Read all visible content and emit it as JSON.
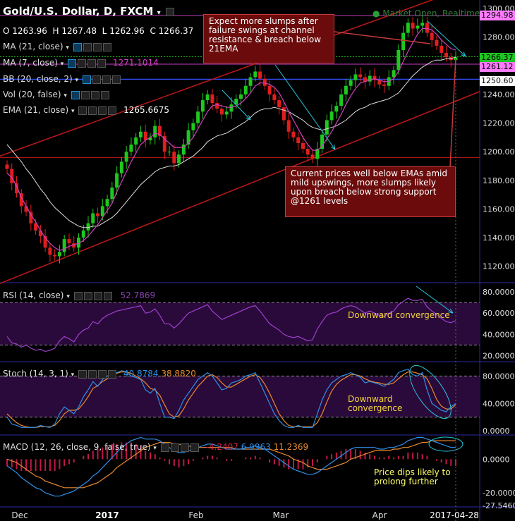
{
  "header": {
    "title": "Gold/U.S. Dollar, D, FXCM",
    "ohlc": {
      "o_label": "O",
      "o": "1263.96",
      "h_label": "H",
      "h": "1267.48",
      "l_label": "L",
      "l": "1262.96",
      "c_label": "C",
      "c": "1266.37"
    },
    "market_status": "Market Open, Realtime"
  },
  "indicators": [
    {
      "label": "MA (21, close)",
      "value": ""
    },
    {
      "label": "MA (7, close)",
      "value": "1271.1014"
    },
    {
      "label": "BB (20, close, 2)",
      "value": ""
    },
    {
      "label": "Vol (20, false)",
      "value": ""
    },
    {
      "label": "EMA (21, close)",
      "value": "1265.6675"
    }
  ],
  "annotations": {
    "top": "Expect more slumps after failure swings at channel resistance & breach below 21EMA",
    "bottom": "Current prices well below EMAs amid mild upswings, more slumps likely upon breach below strong support @1261 levels",
    "rsi_note": "Downward convergence",
    "stoch_note": "Downward convergence",
    "macd_note": "Price dips likely to prolong further"
  },
  "rsi": {
    "label": "RSI (14, close)",
    "value": "52.7869"
  },
  "stoch": {
    "label": "Stoch (14, 3, 1)",
    "k": "40.8784",
    "d": "38.8820"
  },
  "macd": {
    "label": "MACD (12, 26, close, 9, false, true)",
    "hist": "-4.2407",
    "macd": "6.9963",
    "signal": "11.2369"
  },
  "price_labels": {
    "high": "1294.98",
    "current": "1266.37",
    "ma": "1261.12",
    "support": "1250.60"
  },
  "colors": {
    "up": "#1ec81e",
    "down": "#e01e1e",
    "ma7": "#d040c0",
    "ema21": "#dddddd",
    "macd": "#2f8fe8",
    "signal": "#e8892f",
    "rsi": "#a040d0",
    "stoch_k": "#2f8fe8",
    "stoch_d": "#e8892f"
  },
  "chart_data": {
    "type": "candlestick",
    "x_labels": [
      "Dec",
      "2017",
      "Feb",
      "Mar",
      "Apr",
      "2017-04-28"
    ],
    "price_axis": {
      "ticks": [
        "1300.00",
        "1280.00",
        "1260.00",
        "1240.00",
        "1220.00",
        "1200.00",
        "1180.00",
        "1160.00",
        "1140.00",
        "1120.00"
      ],
      "ylim": [
        1110,
        1302
      ]
    },
    "rsi_axis": {
      "ticks": [
        "80.0000",
        "60.0000",
        "40.0000",
        "20.0000"
      ],
      "ylim": [
        15,
        88
      ],
      "bands": [
        70,
        30
      ]
    },
    "stoch_axis": {
      "ticks": [
        "80.0000",
        "40.0000",
        "0.0000"
      ],
      "ylim": [
        -5,
        100
      ],
      "bands": [
        80,
        20
      ]
    },
    "macd_axis": {
      "ticks": [
        "0.0000",
        "-20.0000",
        "-27.5460"
      ],
      "ylim": [
        -28,
        14
      ]
    },
    "close": [
      1188,
      1178,
      1171,
      1162,
      1158,
      1150,
      1145,
      1141,
      1133,
      1128,
      1127,
      1130,
      1139,
      1136,
      1133,
      1140,
      1145,
      1150,
      1157,
      1155,
      1162,
      1167,
      1175,
      1185,
      1193,
      1200,
      1205,
      1210,
      1214,
      1208,
      1210,
      1218,
      1211,
      1200,
      1200,
      1192,
      1198,
      1205,
      1215,
      1220,
      1228,
      1236,
      1240,
      1234,
      1230,
      1226,
      1228,
      1233,
      1237,
      1240,
      1246,
      1252,
      1256,
      1251,
      1246,
      1240,
      1236,
      1231,
      1222,
      1214,
      1210,
      1206,
      1202,
      1198,
      1195,
      1202,
      1212,
      1222,
      1228,
      1232,
      1240,
      1246,
      1250,
      1254,
      1252,
      1249,
      1253,
      1250,
      1247,
      1246,
      1252,
      1257,
      1271,
      1283,
      1290,
      1286,
      1288,
      1290,
      1283,
      1278,
      1274,
      1269,
      1266,
      1264,
      1266
    ],
    "ma7": [
      1185,
      1182,
      1176,
      1168,
      1162,
      1156,
      1151,
      1145,
      1140,
      1136,
      1133,
      1131,
      1132,
      1134,
      1135,
      1136,
      1138,
      1141,
      1145,
      1149,
      1154,
      1159,
      1164,
      1172,
      1179,
      1186,
      1193,
      1199,
      1205,
      1208,
      1210,
      1213,
      1212,
      1209,
      1206,
      1203,
      1203,
      1203,
      1206,
      1210,
      1216,
      1222,
      1228,
      1232,
      1233,
      1232,
      1231,
      1231,
      1232,
      1234,
      1237,
      1241,
      1246,
      1248,
      1248,
      1247,
      1245,
      1241,
      1235,
      1228,
      1222,
      1216,
      1210,
      1205,
      1201,
      1201,
      1204,
      1209,
      1214,
      1220,
      1226,
      1233,
      1239,
      1244,
      1248,
      1249,
      1250,
      1251,
      1250,
      1249,
      1249,
      1251,
      1256,
      1263,
      1270,
      1276,
      1282,
      1286,
      1286,
      1285,
      1282,
      1278,
      1275,
      1272,
      1271
    ],
    "ema21": [
      1205,
      1201,
      1197,
      1193,
      1188,
      1184,
      1179,
      1174,
      1170,
      1165,
      1161,
      1158,
      1155,
      1152,
      1150,
      1148,
      1147,
      1147,
      1148,
      1148,
      1150,
      1152,
      1154,
      1157,
      1161,
      1165,
      1169,
      1173,
      1177,
      1180,
      1183,
      1186,
      1188,
      1189,
      1190,
      1190,
      1191,
      1193,
      1195,
      1197,
      1200,
      1203,
      1207,
      1209,
      1211,
      1212,
      1213,
      1215,
      1217,
      1219,
      1221,
      1224,
      1227,
      1229,
      1230,
      1230,
      1231,
      1230,
      1229,
      1228,
      1226,
      1224,
      1222,
      1219,
      1217,
      1216,
      1215,
      1216,
      1217,
      1218,
      1220,
      1222,
      1225,
      1228,
      1230,
      1231,
      1233,
      1234,
      1235,
      1236,
      1237,
      1239,
      1241,
      1245,
      1249,
      1253,
      1256,
      1259,
      1261,
      1263,
      1264,
      1264,
      1265,
      1265,
      1266
    ],
    "rsi": [
      38,
      32,
      31,
      28,
      30,
      27,
      25,
      26,
      24,
      25,
      27,
      34,
      38,
      36,
      33,
      40,
      44,
      46,
      52,
      50,
      55,
      58,
      60,
      62,
      63,
      64,
      65,
      66,
      67,
      60,
      61,
      64,
      58,
      50,
      50,
      46,
      50,
      55,
      60,
      62,
      64,
      66,
      68,
      62,
      58,
      54,
      56,
      58,
      60,
      62,
      64,
      66,
      67,
      62,
      56,
      50,
      47,
      44,
      40,
      38,
      37,
      38,
      36,
      34,
      35,
      45,
      52,
      58,
      60,
      61,
      64,
      66,
      67,
      66,
      63,
      60,
      62,
      60,
      58,
      57,
      60,
      62,
      68,
      71,
      74,
      72,
      72,
      73,
      66,
      62,
      59,
      55,
      52,
      51,
      53
    ],
    "stoch_k": [
      20,
      10,
      8,
      5,
      5,
      5,
      5,
      8,
      6,
      5,
      10,
      25,
      35,
      30,
      25,
      35,
      50,
      60,
      72,
      65,
      75,
      80,
      85,
      85,
      88,
      86,
      80,
      78,
      75,
      60,
      55,
      62,
      40,
      20,
      20,
      18,
      30,
      45,
      55,
      65,
      75,
      80,
      85,
      80,
      70,
      60,
      62,
      70,
      72,
      75,
      80,
      82,
      85,
      70,
      55,
      40,
      25,
      15,
      8,
      5,
      5,
      8,
      5,
      5,
      5,
      25,
      45,
      60,
      70,
      75,
      80,
      82,
      85,
      82,
      78,
      70,
      72,
      70,
      68,
      65,
      70,
      75,
      85,
      88,
      90,
      82,
      80,
      85,
      60,
      40,
      35,
      30,
      28,
      35,
      40
    ],
    "stoch_d": [
      25,
      18,
      12,
      8,
      6,
      5,
      5,
      6,
      6,
      6,
      8,
      15,
      25,
      30,
      30,
      32,
      40,
      50,
      62,
      66,
      72,
      76,
      80,
      84,
      86,
      86,
      84,
      80,
      76,
      70,
      62,
      60,
      52,
      38,
      25,
      20,
      22,
      32,
      45,
      55,
      65,
      72,
      80,
      82,
      78,
      70,
      64,
      64,
      68,
      72,
      76,
      80,
      82,
      78,
      68,
      55,
      40,
      25,
      15,
      8,
      6,
      6,
      6,
      6,
      6,
      12,
      25,
      42,
      58,
      68,
      74,
      78,
      82,
      82,
      80,
      76,
      73,
      71,
      70,
      68,
      68,
      70,
      76,
      82,
      86,
      86,
      84,
      82,
      76,
      62,
      46,
      36,
      32,
      32,
      38
    ],
    "macd": [
      -4,
      -6,
      -8,
      -11,
      -13,
      -15,
      -17,
      -18,
      -20,
      -21,
      -22,
      -22,
      -21,
      -20,
      -19,
      -17,
      -15,
      -13,
      -10,
      -8,
      -5,
      -2,
      1,
      4,
      7,
      9,
      11,
      12,
      13,
      12,
      12,
      12,
      11,
      9,
      7,
      5,
      4,
      4,
      5,
      6,
      7,
      8,
      9,
      9,
      8,
      7,
      6,
      6,
      6,
      6,
      7,
      7,
      8,
      7,
      6,
      4,
      2,
      0,
      -2,
      -4,
      -6,
      -7,
      -8,
      -9,
      -9,
      -8,
      -6,
      -4,
      -2,
      0,
      2,
      4,
      6,
      7,
      7,
      7,
      7,
      7,
      6,
      6,
      7,
      7,
      8,
      9,
      11,
      12,
      13,
      13,
      12,
      11,
      10,
      9,
      8,
      7,
      7
    ],
    "macd_signal": [
      0,
      -1,
      -2,
      -4,
      -6,
      -8,
      -10,
      -11,
      -13,
      -14,
      -15,
      -16,
      -17,
      -17,
      -17,
      -17,
      -17,
      -16,
      -15,
      -14,
      -12,
      -10,
      -8,
      -5,
      -3,
      -1,
      1,
      3,
      5,
      7,
      8,
      9,
      10,
      10,
      10,
      9,
      9,
      8,
      8,
      7,
      7,
      7,
      7,
      7,
      7,
      7,
      7,
      7,
      6,
      6,
      6,
      6,
      6,
      6,
      6,
      6,
      5,
      4,
      3,
      2,
      0,
      -1,
      -2,
      -4,
      -5,
      -6,
      -6,
      -6,
      -5,
      -4,
      -3,
      -2,
      0,
      1,
      2,
      3,
      4,
      5,
      5,
      5,
      5,
      6,
      6,
      7,
      7,
      8,
      9,
      10,
      10,
      11,
      11,
      11,
      11,
      11,
      11
    ],
    "current_price": 1266.37,
    "support_level": 1250.6
  }
}
